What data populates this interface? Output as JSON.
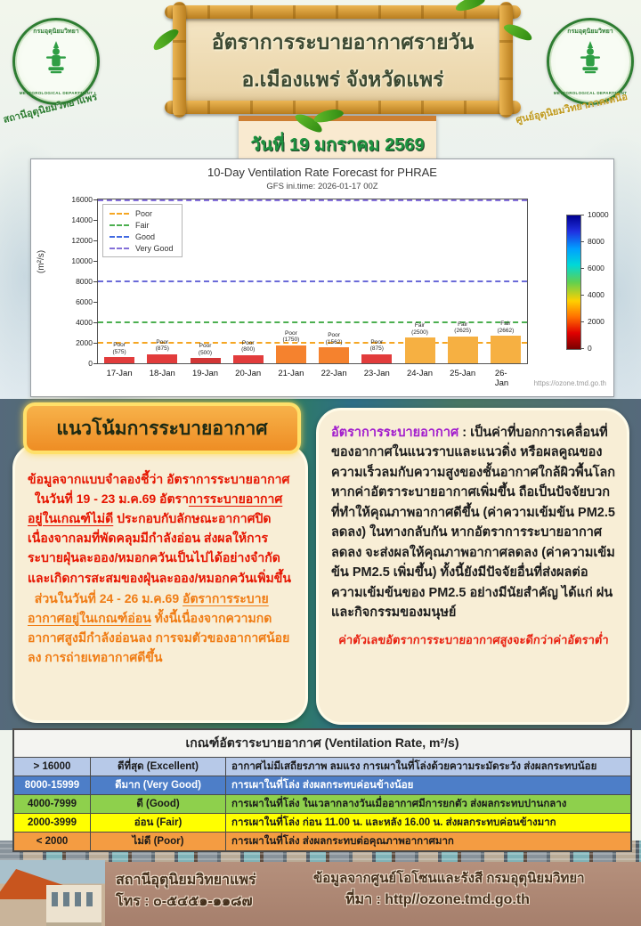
{
  "header": {
    "title_line1": "อัตราการระบายอากาศรายวัน",
    "title_line2": "อ.เมืองแพร่ จังหวัดแพร่",
    "date_banner": "วันที่ 19 มกราคม 2569",
    "seal_top_text": "กรมอุตุนิยมวิทยา",
    "seal_bottom_text": "METEOROLOGICAL DEPARTMENT",
    "logo_left_caption": "สถานีอุตุนิยมวิทยาแพร่",
    "logo_right_caption": "ศูนย์อุตุนิยมวิทยาภาคเหนือ"
  },
  "chart_data": {
    "type": "bar",
    "title": "10-Day Ventilation Rate Forecast for PHRAE",
    "subtitle": "GFS ini.time: 2026-01-17 00Z",
    "ylabel": "(m²/s)",
    "ylim": [
      0,
      16000
    ],
    "yticks": [
      0,
      2000,
      4000,
      6000,
      8000,
      10000,
      12000,
      14000,
      16000
    ],
    "categories": [
      "17-Jan",
      "18-Jan",
      "19-Jan",
      "20-Jan",
      "21-Jan",
      "22-Jan",
      "23-Jan",
      "24-Jan",
      "25-Jan",
      "26-Jan"
    ],
    "values": [
      575,
      875,
      500,
      800,
      1750,
      1562,
      875,
      2500,
      2625,
      2662
    ],
    "ratings": [
      "Poor",
      "Poor",
      "Poor",
      "Poor",
      "Poor",
      "Poor",
      "Poor",
      "Fair",
      "Fair",
      "Fair"
    ],
    "bar_colors": [
      "#e23c3c",
      "#e23c3c",
      "#d23636",
      "#e23c3c",
      "#f5822e",
      "#f5822e",
      "#e23c3c",
      "#f6b042",
      "#f6b042",
      "#f6b042"
    ],
    "legend": [
      {
        "label": "Poor",
        "color": "#f5a623"
      },
      {
        "label": "Fair",
        "color": "#4caf50"
      },
      {
        "label": "Good",
        "color": "#4169e1"
      },
      {
        "label": "Very Good",
        "color": "#8470d8"
      }
    ],
    "legend_position": "upper left",
    "thresholds": [
      {
        "label": "Poor",
        "value": 2000,
        "color": "#f5a623"
      },
      {
        "label": "Fair",
        "value": 4000,
        "color": "#4caf50"
      },
      {
        "label": "Good",
        "value": 8000,
        "color": "#6a6ad8"
      },
      {
        "label": "Very Good",
        "value": 16000,
        "color": "#8470d8"
      }
    ],
    "colorbar": {
      "min": 0,
      "max": 10000,
      "ticks": [
        0,
        2000,
        4000,
        6000,
        8000,
        10000
      ]
    },
    "grid": false,
    "source_url": "https://ozone.tmd.go.th"
  },
  "trend": {
    "heading": "แนวโน้มการระบายอากาศ",
    "p1": [
      {
        "t": "ข้อมูลจากแบบจำลองชี้ว่า อัตราการระบายอากาศ",
        "u": false
      },
      {
        "t": "  ในวันที่ 19 - 23 ม.ค.69 อัตรา",
        "u": false,
        "br": true
      },
      {
        "t": "การระบายอากาศอยู่ในเกณฑ์ไม่ดี",
        "u": true
      },
      {
        "t": " ประกอบกับลักษณะอากาศปิด เนื่องจากลมที่พัดคลุมมีกำลังอ่อน ส่งผลให้การระบายฝุ่นละออง/หมอกควันเป็นไปได้อย่างจำกัด และเกิดการสะสมของฝุ่นละออง/หมอกควันเพิ่มขึ้น",
        "u": false
      }
    ],
    "p2": [
      {
        "t": "  ส่วนในวันที่ 24 - 26 ม.ค.69 ",
        "u": false
      },
      {
        "t": "อัตราการระบายอากาศอยู่ในเกณฑ์อ่อน",
        "u": true
      },
      {
        "t": " ทั้งนี้เนื่องจากความกดอากาศสูงมีกำลังอ่อนลง การจมตัวของอากาศน้อยลง การถ่ายเทอากาศดีขึ้น",
        "u": false
      }
    ]
  },
  "definition": {
    "term": "อัตราการระบายอากาศ",
    "sep": " : ",
    "p1": "เป็นค่าที่บอกการเคลื่อนที่ของอากาศในแนวราบและแนวดิ่ง หรือผลคูณของความเร็วลมกับความสูงของชั้นอากาศใกล้ผิวพื้นโลก",
    "p2": "หากค่าอัตราระบายอากาศเพิ่มขึ้น ถือเป็นปัจจัยบวกที่ทำให้คุณภาพอากาศดีขึ้น (ค่าความเข้มข้น PM2.5 ลดลง) ในทางกลับกัน หากอัตราการระบายอากาศลดลง จะส่งผลให้คุณภาพอากาศลดลง (ค่าความเข้มข้น PM2.5 เพิ่มขึ้น) ทั้งนี้ยังมีปัจจัยอื่นที่ส่งผลต่อความเข้มข้นของ PM2.5 อย่างมีนัยสำคัญ ได้แก่ ฝน และกิจกรรมของมนุษย์",
    "note": "ค่าตัวเลขอัตราการระบายอากาศสูงจะดีกว่าค่าอัตราต่ำ"
  },
  "criteria_table": {
    "title": "เกณฑ์อัตราระบายอากาศ (Ventilation Rate, m²/s)",
    "rows": [
      {
        "range": "> 16000",
        "rating": "ดีที่สุด (Excellent)",
        "description": "อากาศไม่มีเสถียรภาพ ลมแรง การเผาในที่โล่งด้วยความระมัดระวัง ส่งผลกระทบน้อย",
        "bg": "#b7c9e8",
        "fg": "#1a1a1a"
      },
      {
        "range": "8000-15999",
        "rating": "ดีมาก (Very Good)",
        "description": "การเผาในที่โล่ง ส่งผลกระทบค่อนข้างน้อย",
        "bg": "#4d7ec8",
        "fg": "#ffffff"
      },
      {
        "range": "4000-7999",
        "rating": "ดี (Good)",
        "description": "การเผาในที่โล่ง ในเวลากลางวันเมื่ออากาศมีการยกตัว ส่งผลกระทบปานกลาง",
        "bg": "#8ed04c",
        "fg": "#1a1a1a"
      },
      {
        "range": "2000-3999",
        "rating": "อ่อน (Fair)",
        "description": "การเผาในที่โล่ง ก่อน 11.00 น. และหลัง 16.00 น. ส่งผลกระทบค่อนข้างมาก",
        "bg": "#ffff00",
        "fg": "#1a1a1a"
      },
      {
        "range": "< 2000",
        "rating": "ไม่ดี (Poor)",
        "description": "การเผาในที่โล่ง ส่งผลกระทบต่อคุณภาพอากาศมาก",
        "bg": "#f49c42",
        "fg": "#1a1a1a"
      }
    ]
  },
  "footer": {
    "station_name": "สถานีอุตุนิยมวิทยาแพร่",
    "phone": "โทร : ๐-๕๔๕๑-๑๑๘๗",
    "source_line1": "ข้อมูลจากศูนย์โอโซนและรังสี กรมอุตุนิยมวิทยา",
    "source_line2": "ที่มา : http//ozone.tmd.go.th"
  }
}
